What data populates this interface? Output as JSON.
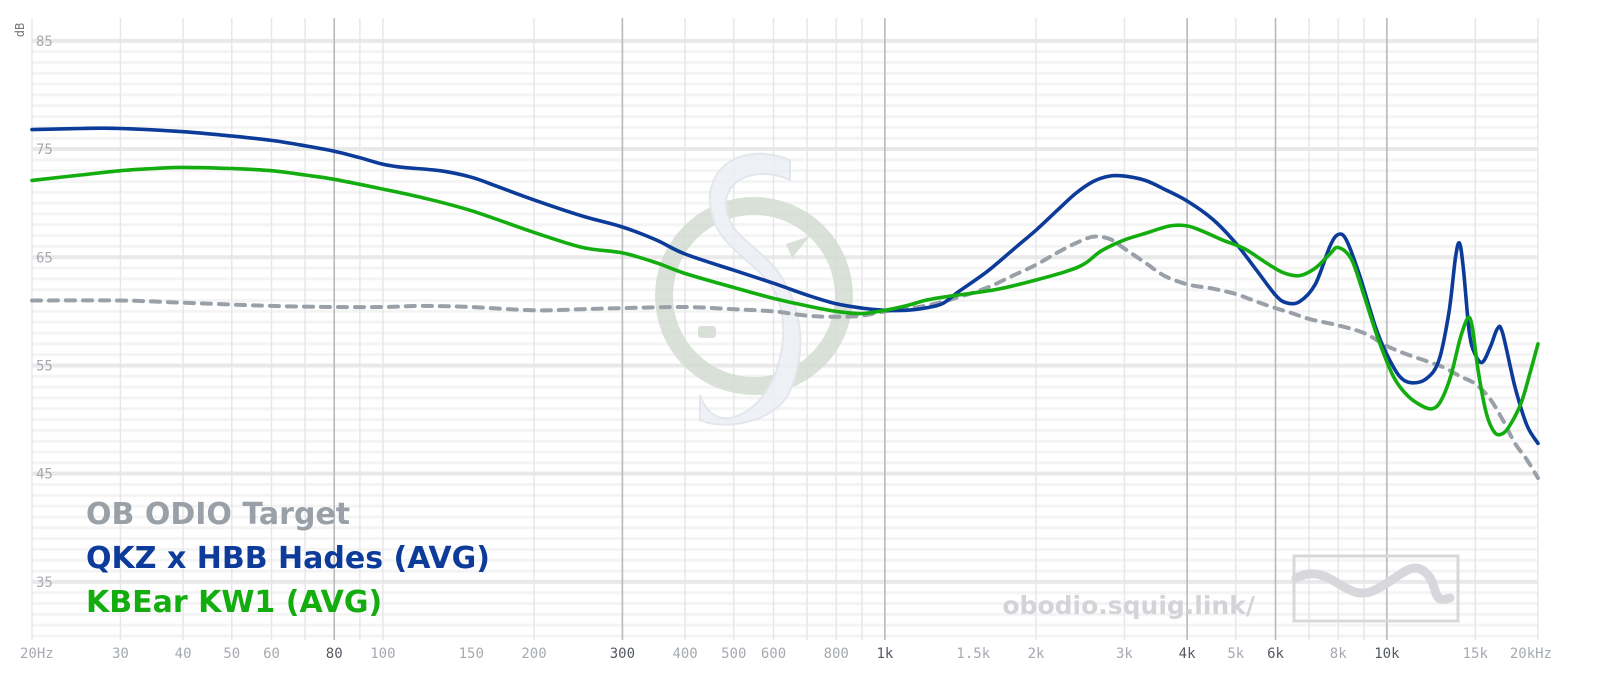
{
  "chart_data": {
    "type": "line",
    "xscale": "log",
    "xlim": [
      20,
      20000
    ],
    "ylim": [
      30,
      86
    ],
    "ylabel": "dB",
    "y_ticks": [
      85,
      75,
      65,
      55,
      45,
      35
    ],
    "x_ticks": [
      {
        "v": 20,
        "label": "20Hz",
        "major": false
      },
      {
        "v": 30,
        "label": "30",
        "major": false
      },
      {
        "v": 40,
        "label": "40",
        "major": false
      },
      {
        "v": 50,
        "label": "50",
        "major": false
      },
      {
        "v": 60,
        "label": "60",
        "major": false
      },
      {
        "v": 80,
        "label": "80",
        "major": true
      },
      {
        "v": 100,
        "label": "100",
        "major": false
      },
      {
        "v": 150,
        "label": "150",
        "major": false
      },
      {
        "v": 200,
        "label": "200",
        "major": false
      },
      {
        "v": 300,
        "label": "300",
        "major": true
      },
      {
        "v": 400,
        "label": "400",
        "major": false
      },
      {
        "v": 500,
        "label": "500",
        "major": false
      },
      {
        "v": 600,
        "label": "600",
        "major": false
      },
      {
        "v": 800,
        "label": "800",
        "major": false
      },
      {
        "v": 1000,
        "label": "1k",
        "major": true
      },
      {
        "v": 1500,
        "label": "1.5k",
        "major": false
      },
      {
        "v": 2000,
        "label": "2k",
        "major": false
      },
      {
        "v": 3000,
        "label": "3k",
        "major": false
      },
      {
        "v": 4000,
        "label": "4k",
        "major": true
      },
      {
        "v": 5000,
        "label": "5k",
        "major": false
      },
      {
        "v": 6000,
        "label": "6k",
        "major": true
      },
      {
        "v": 8000,
        "label": "8k",
        "major": false
      },
      {
        "v": 10000,
        "label": "10k",
        "major": true
      },
      {
        "v": 15000,
        "label": "15k",
        "major": false
      },
      {
        "v": 20000,
        "label": "20kHz",
        "major": false
      }
    ],
    "grid": true,
    "legend_position": "bottom-left",
    "series": [
      {
        "name": "OB ODIO Target",
        "color": "#9aa0a8",
        "dashed": true,
        "points": [
          [
            20,
            61.0
          ],
          [
            30,
            61.0
          ],
          [
            40,
            60.8
          ],
          [
            60,
            60.5
          ],
          [
            80,
            60.4
          ],
          [
            100,
            60.4
          ],
          [
            120,
            60.5
          ],
          [
            150,
            60.4
          ],
          [
            200,
            60.1
          ],
          [
            250,
            60.2
          ],
          [
            300,
            60.3
          ],
          [
            400,
            60.4
          ],
          [
            500,
            60.2
          ],
          [
            600,
            60.0
          ],
          [
            700,
            59.6
          ],
          [
            800,
            59.5
          ],
          [
            900,
            59.6
          ],
          [
            1000,
            60.0
          ],
          [
            1200,
            60.5
          ],
          [
            1400,
            61.3
          ],
          [
            1600,
            62.2
          ],
          [
            1800,
            63.3
          ],
          [
            2000,
            64.3
          ],
          [
            2200,
            65.4
          ],
          [
            2400,
            66.3
          ],
          [
            2600,
            66.9
          ],
          [
            2800,
            66.7
          ],
          [
            3000,
            65.8
          ],
          [
            3300,
            64.5
          ],
          [
            3600,
            63.3
          ],
          [
            4000,
            62.5
          ],
          [
            4500,
            62.1
          ],
          [
            5000,
            61.6
          ],
          [
            5500,
            60.9
          ],
          [
            6000,
            60.3
          ],
          [
            6500,
            59.8
          ],
          [
            7000,
            59.3
          ],
          [
            8000,
            58.7
          ],
          [
            9000,
            58.0
          ],
          [
            10000,
            56.8
          ],
          [
            11000,
            56.0
          ],
          [
            12000,
            55.4
          ],
          [
            13000,
            54.8
          ],
          [
            14000,
            54.0
          ],
          [
            15000,
            53.3
          ],
          [
            16000,
            52.0
          ],
          [
            17000,
            50.0
          ],
          [
            18000,
            47.8
          ],
          [
            19000,
            46.3
          ],
          [
            20000,
            44.6
          ]
        ]
      },
      {
        "name": "QKZ x HBB Hades (AVG)",
        "color": "#0c3b9a",
        "dashed": false,
        "points": [
          [
            20,
            76.8
          ],
          [
            25,
            76.9
          ],
          [
            30,
            76.9
          ],
          [
            40,
            76.6
          ],
          [
            50,
            76.2
          ],
          [
            60,
            75.8
          ],
          [
            70,
            75.3
          ],
          [
            80,
            74.8
          ],
          [
            90,
            74.2
          ],
          [
            100,
            73.6
          ],
          [
            110,
            73.3
          ],
          [
            130,
            73.0
          ],
          [
            150,
            72.4
          ],
          [
            170,
            71.5
          ],
          [
            200,
            70.3
          ],
          [
            250,
            68.8
          ],
          [
            300,
            67.8
          ],
          [
            350,
            66.6
          ],
          [
            400,
            65.3
          ],
          [
            500,
            63.8
          ],
          [
            600,
            62.6
          ],
          [
            700,
            61.5
          ],
          [
            800,
            60.7
          ],
          [
            900,
            60.3
          ],
          [
            1000,
            60.1
          ],
          [
            1100,
            60.1
          ],
          [
            1200,
            60.3
          ],
          [
            1300,
            60.7
          ],
          [
            1400,
            61.8
          ],
          [
            1600,
            63.7
          ],
          [
            1800,
            65.7
          ],
          [
            2000,
            67.5
          ],
          [
            2200,
            69.3
          ],
          [
            2400,
            70.9
          ],
          [
            2600,
            72.0
          ],
          [
            2800,
            72.5
          ],
          [
            3000,
            72.5
          ],
          [
            3300,
            72.1
          ],
          [
            3600,
            71.3
          ],
          [
            4000,
            70.2
          ],
          [
            4500,
            68.5
          ],
          [
            5000,
            66.3
          ],
          [
            5500,
            63.8
          ],
          [
            6000,
            61.5
          ],
          [
            6300,
            60.8
          ],
          [
            6700,
            60.9
          ],
          [
            7200,
            62.5
          ],
          [
            7700,
            66.0
          ],
          [
            8000,
            67.1
          ],
          [
            8300,
            66.6
          ],
          [
            8800,
            63.5
          ],
          [
            9500,
            58.5
          ],
          [
            10000,
            56.0
          ],
          [
            10600,
            54.0
          ],
          [
            11200,
            53.4
          ],
          [
            12000,
            53.8
          ],
          [
            12700,
            55.5
          ],
          [
            13300,
            60.0
          ],
          [
            13700,
            65.0
          ],
          [
            13950,
            66.3
          ],
          [
            14200,
            64.0
          ],
          [
            14600,
            58.0
          ],
          [
            15000,
            56.0
          ],
          [
            15500,
            55.3
          ],
          [
            16100,
            56.8
          ],
          [
            16600,
            58.4
          ],
          [
            17000,
            58.0
          ],
          [
            18000,
            53.0
          ],
          [
            19000,
            49.5
          ],
          [
            20000,
            47.8
          ]
        ]
      },
      {
        "name": "KBEar KW1 (AVG)",
        "color": "#13ad10",
        "dashed": false,
        "points": [
          [
            20,
            72.1
          ],
          [
            25,
            72.6
          ],
          [
            30,
            73.0
          ],
          [
            35,
            73.2
          ],
          [
            40,
            73.3
          ],
          [
            50,
            73.2
          ],
          [
            60,
            73.0
          ],
          [
            70,
            72.6
          ],
          [
            80,
            72.2
          ],
          [
            100,
            71.3
          ],
          [
            120,
            70.5
          ],
          [
            150,
            69.3
          ],
          [
            200,
            67.3
          ],
          [
            250,
            65.9
          ],
          [
            300,
            65.4
          ],
          [
            350,
            64.5
          ],
          [
            400,
            63.5
          ],
          [
            500,
            62.2
          ],
          [
            600,
            61.2
          ],
          [
            700,
            60.5
          ],
          [
            800,
            60.0
          ],
          [
            900,
            59.8
          ],
          [
            1000,
            60.1
          ],
          [
            1100,
            60.5
          ],
          [
            1200,
            61.0
          ],
          [
            1300,
            61.3
          ],
          [
            1500,
            61.7
          ],
          [
            1700,
            62.1
          ],
          [
            2000,
            62.9
          ],
          [
            2300,
            63.7
          ],
          [
            2500,
            64.4
          ],
          [
            2700,
            65.6
          ],
          [
            3000,
            66.6
          ],
          [
            3300,
            67.2
          ],
          [
            3700,
            67.9
          ],
          [
            4000,
            67.9
          ],
          [
            4300,
            67.4
          ],
          [
            4700,
            66.6
          ],
          [
            5200,
            65.8
          ],
          [
            5700,
            64.6
          ],
          [
            6200,
            63.6
          ],
          [
            6700,
            63.3
          ],
          [
            7200,
            64.0
          ],
          [
            7700,
            65.3
          ],
          [
            8000,
            65.9
          ],
          [
            8500,
            64.8
          ],
          [
            9000,
            61.5
          ],
          [
            9600,
            57.5
          ],
          [
            10300,
            54.0
          ],
          [
            11000,
            52.2
          ],
          [
            11700,
            51.3
          ],
          [
            12300,
            51.0
          ],
          [
            12800,
            51.7
          ],
          [
            13400,
            54.0
          ],
          [
            14000,
            57.5
          ],
          [
            14500,
            59.4
          ],
          [
            14800,
            58.5
          ],
          [
            15200,
            54.5
          ],
          [
            15800,
            50.5
          ],
          [
            16400,
            48.8
          ],
          [
            17000,
            48.7
          ],
          [
            17600,
            49.5
          ],
          [
            18500,
            51.5
          ],
          [
            19200,
            54.0
          ],
          [
            20000,
            57.0
          ]
        ]
      }
    ]
  },
  "watermark": {
    "url_text": "obodio.squig.link/"
  }
}
